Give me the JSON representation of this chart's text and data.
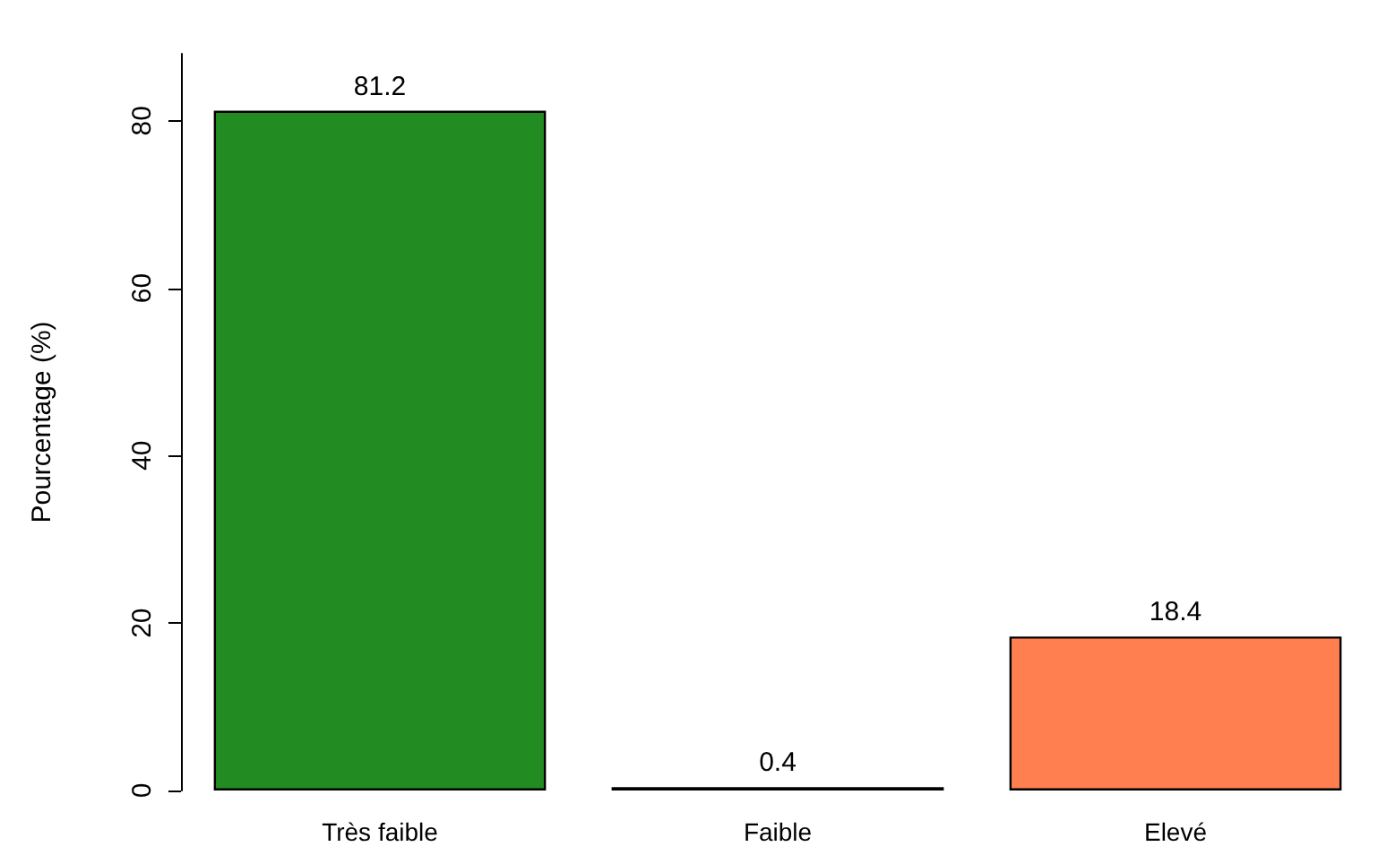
{
  "chart_data": {
    "type": "bar",
    "ylabel": "Pourcentage (%)",
    "categories": [
      "Très faible",
      "Faible",
      "Elevé"
    ],
    "values": [
      81.2,
      0.4,
      18.4
    ],
    "colors": [
      "#228b22",
      "#ffd700",
      "#ff7f50"
    ],
    "ylim": [
      0,
      88
    ],
    "yticks": [
      0,
      20,
      40,
      60,
      80
    ],
    "data_labels": true,
    "grid": false
  }
}
